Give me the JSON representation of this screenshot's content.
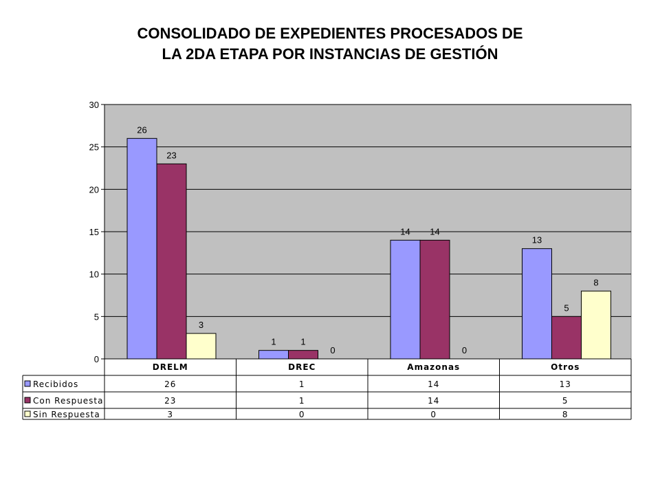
{
  "title_lines": [
    "CONSOLIDADO DE EXPEDIENTES PROCESADOS DE",
    "LA 2DA ETAPA POR INSTANCIAS DE GESTIÓN"
  ],
  "chart_data": {
    "type": "bar",
    "title": "CONSOLIDADO DE EXPEDIENTES PROCESADOS DE LA 2DA ETAPA POR INSTANCIAS DE GESTIÓN",
    "categories": [
      "DRELM",
      "DREC",
      "Amazonas",
      "Otros"
    ],
    "series": [
      {
        "name": "Recibidos",
        "values": [
          26,
          1,
          14,
          13
        ],
        "color": "#9999ff"
      },
      {
        "name": "Con Respuesta",
        "values": [
          23,
          1,
          14,
          5
        ],
        "color": "#993366"
      },
      {
        "name": "Sin Respuesta",
        "values": [
          3,
          0,
          0,
          8
        ],
        "color": "#ffffcc"
      }
    ],
    "ylim": [
      0,
      30
    ],
    "yticks": [
      0,
      5,
      10,
      15,
      20,
      25,
      30
    ],
    "grid": true,
    "plot_background": "#c0c0c0",
    "legend": "data-table"
  }
}
